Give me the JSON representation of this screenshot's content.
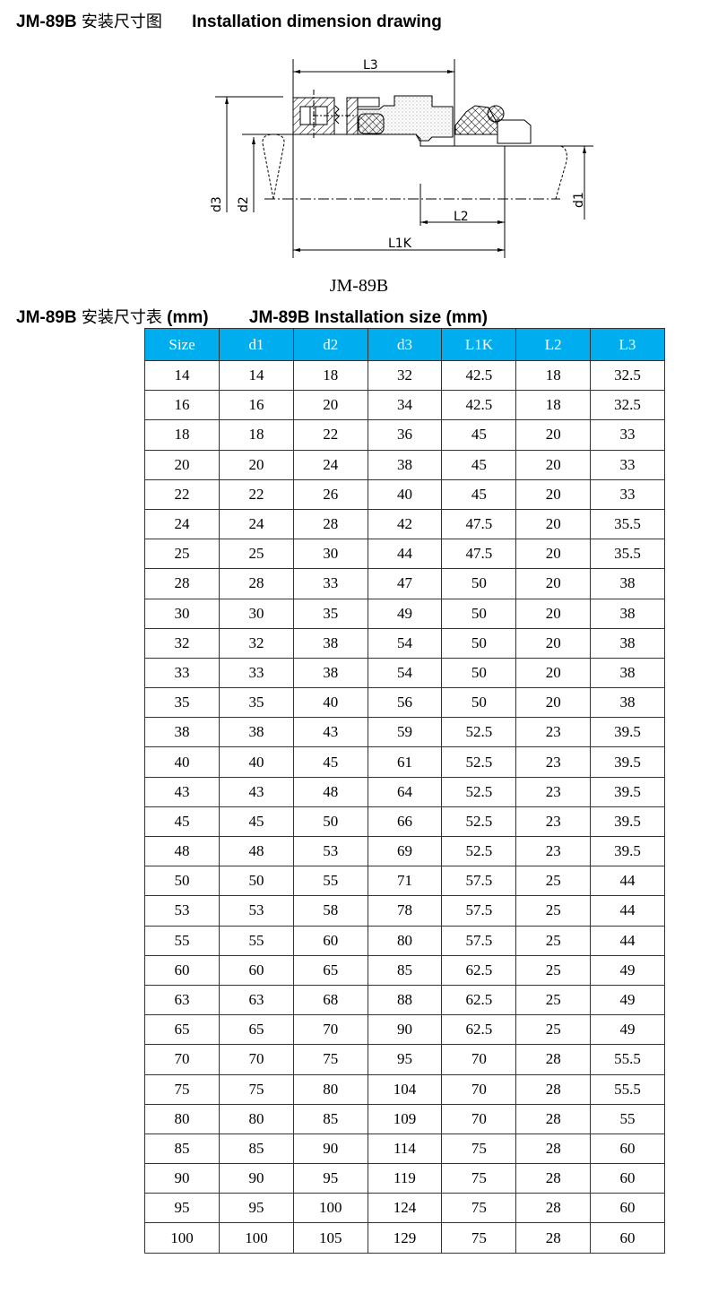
{
  "title": {
    "model": "JM-89B",
    "cn": "安装尺寸图",
    "en": "Installation dimension drawing"
  },
  "drawing": {
    "labels": {
      "L3": "L3",
      "L2": "L2",
      "L1K": "L1K",
      "d1": "d1",
      "d2": "d2",
      "d3": "d3"
    },
    "caption": "JM-89B"
  },
  "table_title": {
    "model": "JM-89B",
    "cn": "安装尺寸表",
    "unit": "(mm)",
    "model_en": "JM-89B",
    "en": "Installation size (mm)"
  },
  "table": {
    "header_color": "#00aeef",
    "columns": [
      "Size",
      "d1",
      "d2",
      "d3",
      "L1K",
      "L2",
      "L3"
    ],
    "rows": [
      [
        "14",
        "14",
        "18",
        "32",
        "42.5",
        "18",
        "32.5"
      ],
      [
        "16",
        "16",
        "20",
        "34",
        "42.5",
        "18",
        "32.5"
      ],
      [
        "18",
        "18",
        "22",
        "36",
        "45",
        "20",
        "33"
      ],
      [
        "20",
        "20",
        "24",
        "38",
        "45",
        "20",
        "33"
      ],
      [
        "22",
        "22",
        "26",
        "40",
        "45",
        "20",
        "33"
      ],
      [
        "24",
        "24",
        "28",
        "42",
        "47.5",
        "20",
        "35.5"
      ],
      [
        "25",
        "25",
        "30",
        "44",
        "47.5",
        "20",
        "35.5"
      ],
      [
        "28",
        "28",
        "33",
        "47",
        "50",
        "20",
        "38"
      ],
      [
        "30",
        "30",
        "35",
        "49",
        "50",
        "20",
        "38"
      ],
      [
        "32",
        "32",
        "38",
        "54",
        "50",
        "20",
        "38"
      ],
      [
        "33",
        "33",
        "38",
        "54",
        "50",
        "20",
        "38"
      ],
      [
        "35",
        "35",
        "40",
        "56",
        "50",
        "20",
        "38"
      ],
      [
        "38",
        "38",
        "43",
        "59",
        "52.5",
        "23",
        "39.5"
      ],
      [
        "40",
        "40",
        "45",
        "61",
        "52.5",
        "23",
        "39.5"
      ],
      [
        "43",
        "43",
        "48",
        "64",
        "52.5",
        "23",
        "39.5"
      ],
      [
        "45",
        "45",
        "50",
        "66",
        "52.5",
        "23",
        "39.5"
      ],
      [
        "48",
        "48",
        "53",
        "69",
        "52.5",
        "23",
        "39.5"
      ],
      [
        "50",
        "50",
        "55",
        "71",
        "57.5",
        "25",
        "44"
      ],
      [
        "53",
        "53",
        "58",
        "78",
        "57.5",
        "25",
        "44"
      ],
      [
        "55",
        "55",
        "60",
        "80",
        "57.5",
        "25",
        "44"
      ],
      [
        "60",
        "60",
        "65",
        "85",
        "62.5",
        "25",
        "49"
      ],
      [
        "63",
        "63",
        "68",
        "88",
        "62.5",
        "25",
        "49"
      ],
      [
        "65",
        "65",
        "70",
        "90",
        "62.5",
        "25",
        "49"
      ],
      [
        "70",
        "70",
        "75",
        "95",
        "70",
        "28",
        "55.5"
      ],
      [
        "75",
        "75",
        "80",
        "104",
        "70",
        "28",
        "55.5"
      ],
      [
        "80",
        "80",
        "85",
        "109",
        "70",
        "28",
        "55"
      ],
      [
        "85",
        "85",
        "90",
        "114",
        "75",
        "28",
        "60"
      ],
      [
        "90",
        "90",
        "95",
        "119",
        "75",
        "28",
        "60"
      ],
      [
        "95",
        "95",
        "100",
        "124",
        "75",
        "28",
        "60"
      ],
      [
        "100",
        "100",
        "105",
        "129",
        "75",
        "28",
        "60"
      ]
    ]
  }
}
